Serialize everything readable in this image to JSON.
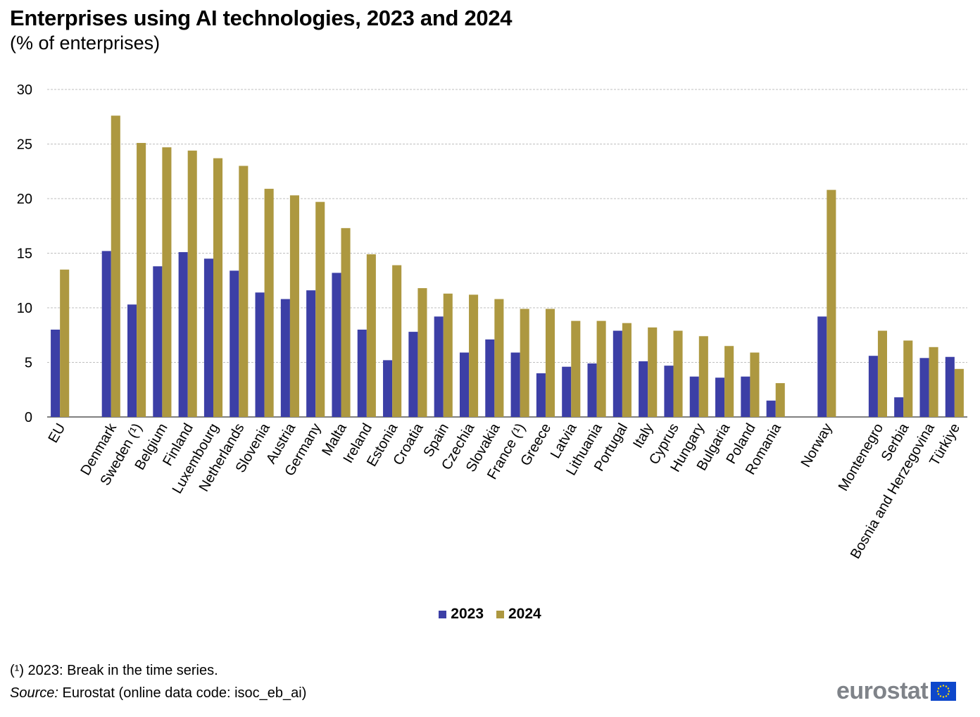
{
  "title": "Enterprises using AI technologies, 2023 and 2024",
  "subtitle": "(% of enterprises)",
  "footnote": "(¹) 2023: Break in the time series.",
  "source_label": "Source:",
  "source_text": " Eurostat (online data code: isoc_eb_ai)",
  "logo_text": "eurostat",
  "colors": {
    "series_2023": "#3c3fa6",
    "series_2024": "#ad9840",
    "grid": "#bfbfbf",
    "flag_blue": "#0e47cb",
    "flag_star": "#ffdd00"
  },
  "chart_data": {
    "type": "bar",
    "title": "Enterprises using AI technologies, 2023 and 2024",
    "subtitle": "(% of enterprises)",
    "ylim": [
      0,
      30
    ],
    "yticks": [
      0,
      5,
      10,
      15,
      20,
      25,
      30
    ],
    "grid": true,
    "legend_position": "bottom",
    "groups": [
      [
        "EU"
      ],
      [
        "Denmark",
        "Sweden (¹)",
        "Belgium",
        "Finland",
        "Luxembourg",
        "Netherlands",
        "Slovenia",
        "Austria",
        "Germany",
        "Malta",
        "Ireland",
        "Estonia",
        "Croatia",
        "Spain",
        "Czechia",
        "Slovakia",
        "France (¹)",
        "Greece",
        "Latvia",
        "Lithuania",
        "Portugal",
        "Italy",
        "Cyprus",
        "Hungary",
        "Bulgaria",
        "Poland",
        "Romania"
      ],
      [
        "Norway"
      ],
      [
        "Montenegro",
        "Serbia",
        "Bosnia and Herzegovina",
        "Türkiye"
      ]
    ],
    "categories": [
      "EU",
      "Denmark",
      "Sweden (¹)",
      "Belgium",
      "Finland",
      "Luxembourg",
      "Netherlands",
      "Slovenia",
      "Austria",
      "Germany",
      "Malta",
      "Ireland",
      "Estonia",
      "Croatia",
      "Spain",
      "Czechia",
      "Slovakia",
      "France (¹)",
      "Greece",
      "Latvia",
      "Lithuania",
      "Portugal",
      "Italy",
      "Cyprus",
      "Hungary",
      "Bulgaria",
      "Poland",
      "Romania",
      "Norway",
      "Montenegro",
      "Serbia",
      "Bosnia and Herzegovina",
      "Türkiye"
    ],
    "series": [
      {
        "name": "2023",
        "values": [
          8.0,
          15.2,
          10.3,
          13.8,
          15.1,
          14.5,
          13.4,
          11.4,
          10.8,
          11.6,
          13.2,
          8.0,
          5.2,
          7.8,
          9.2,
          5.9,
          7.1,
          5.9,
          4.0,
          4.6,
          4.9,
          7.9,
          5.1,
          4.7,
          3.7,
          3.6,
          3.7,
          1.5,
          9.2,
          5.6,
          1.8,
          5.4,
          5.5
        ]
      },
      {
        "name": "2024",
        "values": [
          13.5,
          27.6,
          25.1,
          24.7,
          24.4,
          23.7,
          23.0,
          20.9,
          20.3,
          19.7,
          17.3,
          14.9,
          13.9,
          11.8,
          11.3,
          11.2,
          10.8,
          9.9,
          9.9,
          8.8,
          8.8,
          8.6,
          8.2,
          7.9,
          7.4,
          6.5,
          5.9,
          3.1,
          20.8,
          7.9,
          7.0,
          6.4,
          4.4
        ]
      }
    ]
  }
}
